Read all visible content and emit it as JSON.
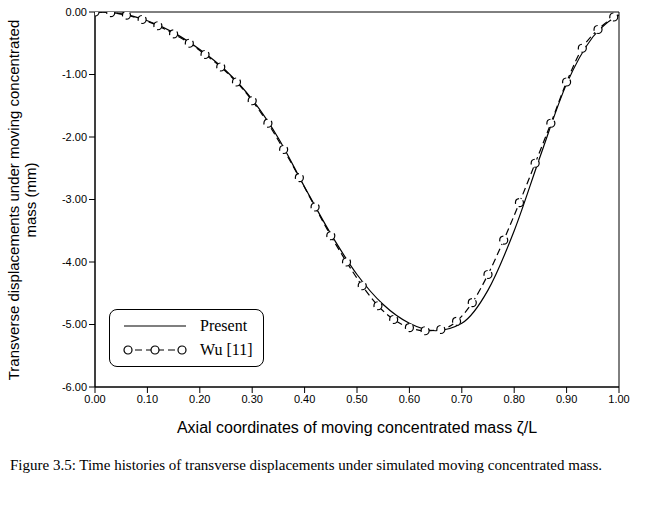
{
  "chart_data": {
    "type": "line",
    "x_label": "Axial coordinates of moving concentrated mass ζ/L",
    "y_label": "Transverse displacements under moving concentrated mass (mm)",
    "caption": "Figure 3.5: Time histories of transverse displacements under simulated moving concentrated mass.",
    "xlim": [
      0,
      1
    ],
    "ylim": [
      -6,
      0
    ],
    "xticks": [
      {
        "value": 0,
        "label": "0.00"
      },
      {
        "value": 0.1,
        "label": "0.10"
      },
      {
        "value": 0.2,
        "label": "0.20"
      },
      {
        "value": 0.3,
        "label": "0.30"
      },
      {
        "value": 0.4,
        "label": "0.40"
      },
      {
        "value": 0.5,
        "label": "0.50"
      },
      {
        "value": 0.6,
        "label": "0.60"
      },
      {
        "value": 0.7,
        "label": "0.70"
      },
      {
        "value": 0.8,
        "label": "0.80"
      },
      {
        "value": 0.9,
        "label": "0.90"
      },
      {
        "value": 1,
        "label": "1.00"
      }
    ],
    "yticks": [
      {
        "value": -6,
        "label": "-6.00"
      },
      {
        "value": -5,
        "label": "-5.00"
      },
      {
        "value": -4,
        "label": "-4.00"
      },
      {
        "value": -3,
        "label": "-3.00"
      },
      {
        "value": -2,
        "label": "-2.00"
      },
      {
        "value": -1,
        "label": "-1.00"
      },
      {
        "value": 0,
        "label": "0.00"
      }
    ],
    "grid": false,
    "legend": "lower left",
    "series": [
      {
        "name": "Present",
        "color": "#000000",
        "line_style": "solid",
        "marker": "none",
        "x": [
          0,
          0.05,
          0.1,
          0.15,
          0.2,
          0.25,
          0.3,
          0.35,
          0.4,
          0.45,
          0.5,
          0.55,
          0.6,
          0.65,
          0.7,
          0.75,
          0.8,
          0.85,
          0.9,
          0.95,
          1
        ],
        "values": [
          0,
          -0.03,
          -0.14,
          -0.33,
          -0.6,
          -0.94,
          -1.4,
          -2.02,
          -2.8,
          -3.55,
          -4.2,
          -4.68,
          -4.98,
          -5.1,
          -4.98,
          -4.45,
          -3.5,
          -2.3,
          -1.15,
          -0.4,
          -0.05
        ]
      },
      {
        "name": "Wu [11]",
        "color": "#000000",
        "line_style": "dashed",
        "marker": "circle",
        "x": [
          0,
          0.03,
          0.06,
          0.09,
          0.12,
          0.15,
          0.18,
          0.21,
          0.24,
          0.27,
          0.3,
          0.33,
          0.36,
          0.39,
          0.42,
          0.45,
          0.48,
          0.51,
          0.54,
          0.57,
          0.6,
          0.63,
          0.66,
          0.69,
          0.72,
          0.75,
          0.78,
          0.81,
          0.84,
          0.87,
          0.9,
          0.93,
          0.96,
          0.99
        ],
        "values": [
          0,
          -0.01,
          -0.05,
          -0.12,
          -0.22,
          -0.35,
          -0.5,
          -0.68,
          -0.88,
          -1.12,
          -1.42,
          -1.78,
          -2.2,
          -2.65,
          -3.12,
          -3.58,
          -4.0,
          -4.38,
          -4.7,
          -4.92,
          -5.05,
          -5.1,
          -5.08,
          -4.95,
          -4.65,
          -4.2,
          -3.65,
          -3.05,
          -2.42,
          -1.78,
          -1.12,
          -0.58,
          -0.28,
          -0.08
        ]
      }
    ]
  }
}
